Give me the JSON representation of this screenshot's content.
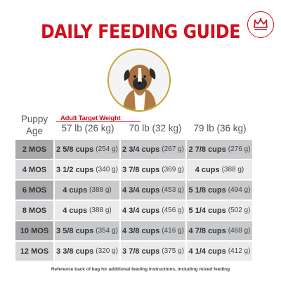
{
  "title": "DAILY FEEDING GUIDE",
  "brand_icon": "crown-icon",
  "header": {
    "age_label_1": "Puppy",
    "age_label_2": "Age",
    "target_label": "Adult Target Weight",
    "columns": [
      "57 lb (26 kg)",
      "70 lb (32 kg)",
      "79 lb (36 kg)"
    ]
  },
  "rows": [
    {
      "age": "2 MOS",
      "c1": {
        "cups": "2 5/8 cups",
        "g": "(254 g)"
      },
      "c2": {
        "cups": "2 3/4 cups",
        "g": "(267 g)"
      },
      "c3": {
        "cups": "2 7/8 cups",
        "g": "(276 g)"
      }
    },
    {
      "age": "4 MOS",
      "c1": {
        "cups": "3 1/2 cups",
        "g": "(340 g)"
      },
      "c2": {
        "cups": "3 7/8 cups",
        "g": "(369 g)"
      },
      "c3": {
        "cups": "4 cups",
        "g": "(388 g)"
      }
    },
    {
      "age": "6 MOS",
      "c1": {
        "cups": "4 cups",
        "g": "(388 g)"
      },
      "c2": {
        "cups": "4 3/4 cups",
        "g": "(453 g)"
      },
      "c3": {
        "cups": "5 1/8 cups",
        "g": "(494 g)"
      }
    },
    {
      "age": "8 MOS",
      "c1": {
        "cups": "4 cups",
        "g": "(388 g)"
      },
      "c2": {
        "cups": "4 3/4 cups",
        "g": "(456 g)"
      },
      "c3": {
        "cups": "5 1/4 cups",
        "g": "(502 g)"
      }
    },
    {
      "age": "10 MOS",
      "c1": {
        "cups": "3 5/8 cups",
        "g": "(354 g)"
      },
      "c2": {
        "cups": "4 3/8 cups",
        "g": "(416 g)"
      },
      "c3": {
        "cups": "4 7/8 cups",
        "g": "(468 g)"
      }
    },
    {
      "age": "12 MOS",
      "c1": {
        "cups": "3 3/8 cups",
        "g": "(320 g)"
      },
      "c2": {
        "cups": "3 7/8 cups",
        "g": "(375 g)"
      },
      "c3": {
        "cups": "4 1/4 cups",
        "g": "(412 g)"
      }
    }
  ],
  "footnote": "Reference back of bag for additional feeding instructions, including mixed feeding",
  "colors": {
    "title": "#d0101c",
    "accent_gold": "#c8a232",
    "row_dark": "#c9cacc",
    "row_light": "#ebebeb"
  }
}
